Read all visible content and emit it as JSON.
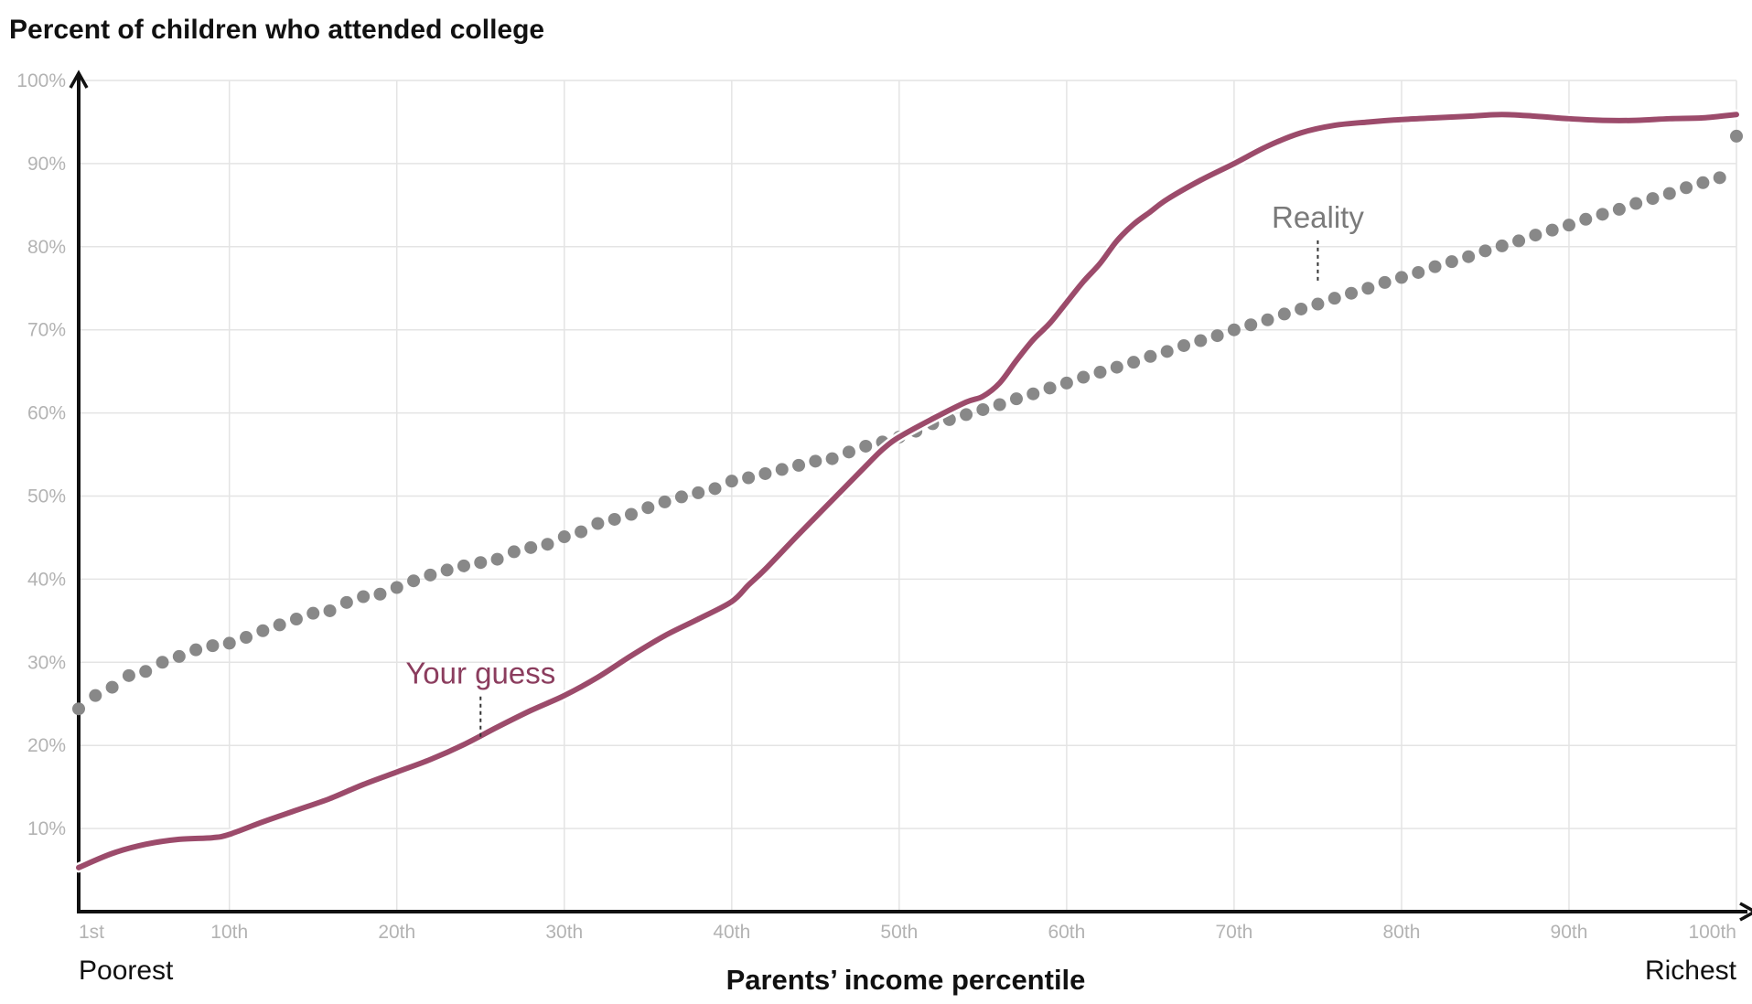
{
  "chart_data": {
    "type": "line",
    "title": "Percent of children who attended college",
    "xlabel": "Parents’ income percentile",
    "x_start_label": "Poorest",
    "x_end_label": "Richest",
    "xlim": [
      1,
      100
    ],
    "ylim": [
      0,
      100
    ],
    "xticks": [
      1,
      10,
      20,
      30,
      40,
      50,
      60,
      70,
      80,
      90,
      100
    ],
    "xtick_labels": [
      "1st",
      "10th",
      "20th",
      "30th",
      "40th",
      "50th",
      "60th",
      "70th",
      "80th",
      "90th",
      "100th"
    ],
    "yticks": [
      10,
      20,
      30,
      40,
      50,
      60,
      70,
      80,
      90,
      100
    ],
    "ytick_labels": [
      "10%",
      "20%",
      "30%",
      "40%",
      "50%",
      "60%",
      "70%",
      "80%",
      "90%",
      "100%"
    ],
    "grid": true,
    "series": [
      {
        "name": "Your guess",
        "style": "solid",
        "color": "#9c4b6b",
        "x": [
          1,
          3,
          5,
          7,
          9,
          10,
          12,
          14,
          16,
          18,
          20,
          22,
          24,
          26,
          28,
          30,
          32,
          34,
          36,
          38,
          40,
          41,
          42,
          44,
          46,
          48,
          49,
          50,
          52,
          54,
          55,
          56,
          57,
          58,
          59,
          60,
          61,
          62,
          63,
          64,
          65,
          66,
          68,
          70,
          72,
          74,
          76,
          78,
          80,
          82,
          84,
          86,
          88,
          90,
          92,
          94,
          96,
          98,
          100
        ],
        "y": [
          5.3,
          7.0,
          8.1,
          8.7,
          8.9,
          9.3,
          10.8,
          12.2,
          13.6,
          15.3,
          16.8,
          18.3,
          20.1,
          22.2,
          24.2,
          26.0,
          28.2,
          30.8,
          33.2,
          35.2,
          37.3,
          39.3,
          41.2,
          45.4,
          49.5,
          53.6,
          55.6,
          57.1,
          59.3,
          61.3,
          62.0,
          63.6,
          66.3,
          68.8,
          70.8,
          73.3,
          75.8,
          78.0,
          80.7,
          82.7,
          84.2,
          85.7,
          88.0,
          90.0,
          92.1,
          93.7,
          94.6,
          95.0,
          95.3,
          95.5,
          95.7,
          95.9,
          95.7,
          95.4,
          95.2,
          95.2,
          95.4,
          95.5,
          95.9
        ]
      },
      {
        "name": "Reality",
        "style": "dotted",
        "color": "#888888",
        "x": [
          1,
          2,
          3,
          4,
          5,
          6,
          7,
          8,
          9,
          10,
          11,
          12,
          13,
          14,
          15,
          16,
          17,
          18,
          19,
          20,
          21,
          22,
          23,
          24,
          25,
          26,
          27,
          28,
          29,
          30,
          31,
          32,
          33,
          34,
          35,
          36,
          37,
          38,
          39,
          40,
          41,
          42,
          43,
          44,
          45,
          46,
          47,
          48,
          49,
          50,
          51,
          52,
          53,
          54,
          55,
          56,
          57,
          58,
          59,
          60,
          61,
          62,
          63,
          64,
          65,
          66,
          67,
          68,
          69,
          70,
          71,
          72,
          73,
          74,
          75,
          76,
          77,
          78,
          79,
          80,
          81,
          82,
          83,
          84,
          85,
          86,
          87,
          88,
          89,
          90,
          91,
          92,
          93,
          94,
          95,
          96,
          97,
          98,
          99,
          100
        ],
        "y": [
          24.4,
          26.0,
          27.0,
          28.4,
          28.9,
          30.0,
          30.7,
          31.5,
          32.0,
          32.3,
          33.0,
          33.8,
          34.5,
          35.2,
          35.9,
          36.2,
          37.2,
          37.9,
          38.2,
          39.0,
          39.8,
          40.5,
          41.1,
          41.6,
          42.0,
          42.4,
          43.3,
          43.8,
          44.2,
          45.1,
          45.7,
          46.7,
          47.2,
          47.8,
          48.6,
          49.3,
          49.9,
          50.4,
          50.9,
          51.8,
          52.2,
          52.7,
          53.2,
          53.7,
          54.2,
          54.5,
          55.3,
          56.0,
          56.5,
          57.1,
          57.8,
          58.7,
          59.2,
          59.8,
          60.4,
          61.0,
          61.7,
          62.3,
          63.0,
          63.6,
          64.3,
          64.9,
          65.5,
          66.1,
          66.8,
          67.4,
          68.1,
          68.7,
          69.3,
          70.0,
          70.6,
          71.2,
          71.9,
          72.5,
          73.1,
          73.8,
          74.4,
          75.0,
          75.7,
          76.3,
          76.9,
          77.6,
          78.2,
          78.8,
          79.5,
          80.1,
          80.7,
          81.4,
          82.0,
          82.6,
          83.3,
          83.9,
          84.5,
          85.2,
          85.8,
          86.4,
          87.1,
          87.7,
          88.3,
          93.3
        ]
      }
    ],
    "annotations": [
      {
        "text": "Your guess",
        "series": "Your guess",
        "x": 25,
        "y": 20.6,
        "color": "#8b3d5e"
      },
      {
        "text": "Reality",
        "series": "Reality",
        "x": 75,
        "y": 74.6,
        "color": "#7a7a7a"
      }
    ]
  }
}
